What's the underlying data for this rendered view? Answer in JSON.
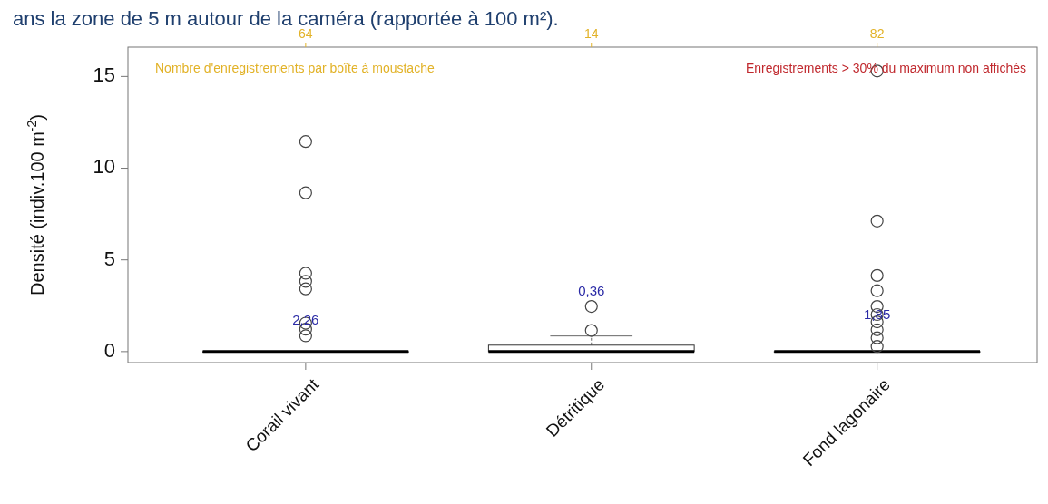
{
  "chart_data": {
    "type": "box",
    "title": "ans la zone de 5 m autour de la caméra (rapportée à 100 m²).",
    "ylabel": "Densité  (indiv.100 m$^{-2}$)",
    "categories": [
      "Corail vivant",
      "Détritique",
      "Fond lagonaire"
    ],
    "ylim": [
      -0.6,
      16.6
    ],
    "yticks": [
      0,
      5,
      10,
      15
    ],
    "grid": false,
    "boxes": [
      {
        "low": 0,
        "q1": 0,
        "median": 0,
        "q3": 0,
        "high": 0,
        "outliers": [
          11.45,
          8.66,
          4.27,
          3.83,
          3.42,
          1.55,
          1.22,
          0.86
        ]
      },
      {
        "low": 0,
        "q1": 0,
        "median": 0,
        "q3": 0.35,
        "high": 0.85,
        "outliers": [
          2.46,
          1.15
        ]
      },
      {
        "low": 0,
        "q1": 0,
        "median": 0,
        "q3": 0,
        "high": 0,
        "outliers": [
          15.3,
          7.12,
          4.15,
          3.32,
          2.46,
          2.02,
          1.62,
          1.19,
          0.75,
          0.28
        ]
      }
    ],
    "annotations": [
      "Nombre d'enregistrements par boîte à moustache",
      "Enregistrements > 30% du maximum non affichés",
      {
        "text": "64",
        "x": "Corail vivant"
      },
      {
        "text": "14",
        "x": "Détritique"
      },
      {
        "text": "82",
        "x": "Fond lagonaire"
      },
      "2,26",
      "0,36",
      "1,85"
    ]
  }
}
